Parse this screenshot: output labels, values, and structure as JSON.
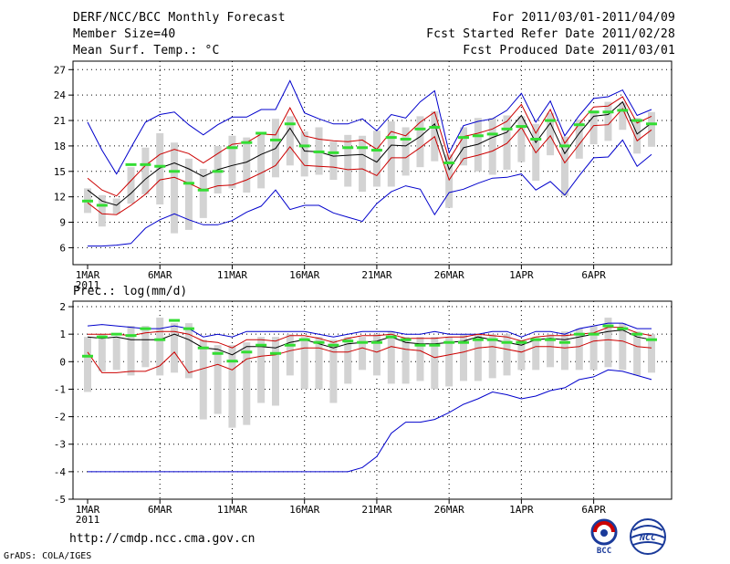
{
  "header": {
    "title": "DERF/NCC/BCC Monthly Forecast",
    "members": "Member Size=40",
    "variable": "Mean Surf. Temp.: °C",
    "for_range": "For 2011/03/01-2011/04/09",
    "started": "Fcst Started Refer Date 2011/02/28",
    "produced": "Fcst Produced Date 2011/03/01"
  },
  "footer": {
    "url": "http://cmdp.ncc.cma.gov.cn",
    "grads": "GrADS: COLA/IGES",
    "logo_bcc": "BCC",
    "logo_ncc": "NCC"
  },
  "colors": {
    "envelope": "#0000cc",
    "spread": "#cc0000",
    "mean": "#000000",
    "box": "#d3d3d3",
    "obs": "#33dd33"
  },
  "chart_data": [
    {
      "type": "line",
      "title": "Mean Surf. Temp.: °C",
      "x_ticks": [
        "1MAR",
        "6MAR",
        "11MAR",
        "16MAR",
        "21MAR",
        "26MAR",
        "1APR",
        "6APR"
      ],
      "year_label": "2011",
      "y_ticks": [
        6,
        9,
        12,
        15,
        18,
        21,
        24,
        27
      ],
      "ylim": [
        4,
        28
      ],
      "days": 40,
      "series": [
        {
          "name": "max",
          "values": [
            20.8,
            17.5,
            14.7,
            17.8,
            20.8,
            21.7,
            22,
            20.5,
            19.3,
            20.5,
            21.4,
            21.4,
            22.3,
            22.3,
            25.7,
            21.9,
            21.2,
            20.6,
            20.6,
            21.2,
            19.8,
            21.7,
            21.3,
            23.2,
            24.5,
            17.2,
            20.4,
            20.9,
            21.2,
            22.2,
            24.2,
            20.8,
            23.3,
            19.2,
            21.6,
            23.6,
            23.8,
            24.6,
            21.6,
            22.3
          ]
        },
        {
          "name": "upper",
          "values": [
            14.2,
            12.8,
            12.1,
            13.9,
            15.7,
            17,
            17.6,
            17.1,
            16,
            17.1,
            18.2,
            18.4,
            19.4,
            19.3,
            22.5,
            19.2,
            18.8,
            18.6,
            18.5,
            18.7,
            17.6,
            19.7,
            19.2,
            20.8,
            22,
            16.4,
            19.1,
            19.5,
            20,
            20.9,
            22.9,
            19.5,
            22.3,
            18.3,
            20.6,
            22.6,
            22.7,
            23.8,
            20.7,
            21.5
          ]
        },
        {
          "name": "mean",
          "values": [
            12.8,
            11.5,
            11,
            12.4,
            14.1,
            15.4,
            16,
            15.3,
            14.4,
            15.2,
            15.7,
            16.1,
            17,
            17.7,
            20.1,
            17.4,
            17.3,
            16.8,
            16.9,
            17,
            16.1,
            18.1,
            18,
            19.1,
            20.6,
            15.2,
            17.8,
            18.2,
            19,
            19.6,
            21.6,
            18.4,
            20.7,
            17.1,
            19.5,
            21.5,
            21.7,
            23.2,
            19.4,
            20.7
          ]
        },
        {
          "name": "lower",
          "values": [
            11.3,
            10,
            9.9,
            11,
            12.3,
            14,
            14.3,
            13.6,
            12.8,
            13.3,
            13.4,
            14,
            14.8,
            15.7,
            17.9,
            15.7,
            15.6,
            15.5,
            15.2,
            15.3,
            14.5,
            16.6,
            16.6,
            17.8,
            19.1,
            14,
            16.5,
            16.9,
            17.4,
            18.3,
            20.2,
            17.2,
            19.2,
            16,
            18.2,
            20.4,
            20.5,
            22.4,
            18.6,
            19.9
          ]
        },
        {
          "name": "min",
          "values": [
            6.2,
            6.2,
            6.3,
            6.5,
            8.3,
            9.3,
            10,
            9.3,
            8.7,
            8.7,
            9.2,
            10.2,
            10.9,
            12.8,
            10.5,
            11,
            11,
            10.1,
            9.6,
            9.1,
            11.2,
            12.6,
            13.3,
            12.9,
            9.9,
            12.5,
            12.9,
            13.6,
            14.2,
            14.3,
            14.7,
            12.8,
            13.8,
            12.2,
            14.5,
            16.6,
            16.7,
            18.7,
            15.6,
            17
          ]
        },
        {
          "name": "obs",
          "values": [
            11.5,
            11,
            null,
            15.8,
            15.8,
            15.6,
            15,
            13.6,
            12.8,
            15,
            17.8,
            18.4,
            19.5,
            18.7,
            20.6,
            18,
            17.3,
            17.2,
            17.8,
            17.8,
            17.5,
            19,
            18.8,
            20,
            20.2,
            16,
            19,
            19.2,
            19.4,
            20,
            20.3,
            18.8,
            21,
            18,
            20.5,
            22,
            22,
            22.2,
            21,
            20.6
          ]
        },
        {
          "name": "box_high",
          "values": [
            13,
            12.2,
            11.8,
            15.5,
            17.8,
            19.5,
            18.4,
            16.5,
            15.3,
            18,
            19.2,
            19,
            19.5,
            21.2,
            21.5,
            19.7,
            20.2,
            18.5,
            19.3,
            19.2,
            19.8,
            20.9,
            20.2,
            21.5,
            22.1,
            17,
            20.2,
            21.3,
            21.3,
            21.6,
            21.5,
            20.6,
            21.9,
            19.1,
            21.1,
            22.2,
            23.2,
            23.1,
            21.3,
            22
          ]
        },
        {
          "name": "box_low",
          "values": [
            10.1,
            8.5,
            10,
            11.2,
            12.3,
            11.1,
            7.7,
            8.1,
            9.5,
            12.4,
            13,
            12.5,
            13,
            14.3,
            15.7,
            14.4,
            14.6,
            14,
            13.2,
            12.6,
            13.2,
            13.2,
            14.5,
            15.5,
            16.2,
            10.7,
            15.7,
            15,
            14.6,
            15.2,
            16.1,
            13.9,
            16.9,
            12.1,
            16.5,
            18.2,
            18.6,
            19.9,
            17.1,
            17.9
          ]
        }
      ]
    },
    {
      "type": "line",
      "title": "Prec.: log(mm/d)",
      "x_ticks": [
        "1MAR",
        "6MAR",
        "11MAR",
        "16MAR",
        "21MAR",
        "26MAR",
        "1APR",
        "6APR"
      ],
      "year_label": "2011",
      "y_ticks": [
        -5,
        -4,
        -3,
        -2,
        -1,
        0,
        1,
        2
      ],
      "ylim": [
        -5,
        2.2
      ],
      "days": 40,
      "series": [
        {
          "name": "max",
          "values": [
            1.3,
            1.35,
            1.3,
            1.25,
            1.2,
            1.2,
            1.3,
            1.2,
            0.9,
            1,
            0.9,
            1.1,
            1.1,
            1.1,
            1.1,
            1.1,
            1,
            0.9,
            1,
            1.1,
            1.1,
            1.1,
            1,
            1,
            1.1,
            1,
            1,
            1,
            1.1,
            1.1,
            0.9,
            1.1,
            1.1,
            1,
            1.2,
            1.3,
            1.4,
            1.4,
            1.2,
            1.2
          ]
        },
        {
          "name": "upper",
          "values": [
            1,
            1,
            1,
            0.95,
            1.05,
            1.1,
            1.1,
            1,
            0.75,
            0.7,
            0.5,
            0.8,
            0.8,
            0.75,
            0.95,
            0.95,
            0.85,
            0.7,
            0.85,
            0.95,
            0.95,
            1,
            0.85,
            0.85,
            0.85,
            0.9,
            0.9,
            1,
            0.95,
            0.9,
            0.75,
            0.9,
            0.95,
            0.95,
            1,
            1.05,
            1.25,
            1.25,
            1.05,
            0.95
          ]
        },
        {
          "name": "mean",
          "values": [
            0.9,
            0.85,
            0.9,
            0.8,
            0.8,
            0.8,
            1,
            0.8,
            0.5,
            0.45,
            0.25,
            0.55,
            0.55,
            0.5,
            0.7,
            0.8,
            0.65,
            0.5,
            0.65,
            0.7,
            0.75,
            0.9,
            0.7,
            0.65,
            0.65,
            0.7,
            0.75,
            0.9,
            0.8,
            0.7,
            0.6,
            0.8,
            0.85,
            0.8,
            0.9,
            1,
            1.1,
            1.15,
            0.9,
            0.8
          ]
        },
        {
          "name": "lower",
          "values": [
            0.35,
            -0.4,
            -0.4,
            -0.35,
            -0.35,
            -0.15,
            0.35,
            -0.4,
            -0.25,
            -0.1,
            -0.3,
            0.1,
            0.2,
            0.25,
            0.4,
            0.5,
            0.5,
            0.35,
            0.35,
            0.5,
            0.35,
            0.55,
            0.45,
            0.4,
            0.15,
            0.25,
            0.35,
            0.5,
            0.55,
            0.45,
            0.35,
            0.55,
            0.55,
            0.5,
            0.55,
            0.75,
            0.8,
            0.75,
            0.55,
            0.5
          ]
        },
        {
          "name": "min",
          "values": [
            -4,
            -4,
            -4,
            -4,
            -4,
            -4,
            -4,
            -4,
            -4,
            -4,
            -4,
            -4,
            -4,
            -4,
            -4,
            -4,
            -4,
            -4,
            -4,
            -3.85,
            -3.45,
            -2.6,
            -2.2,
            -2.2,
            -2.1,
            -1.85,
            -1.55,
            -1.35,
            -1.1,
            -1.2,
            -1.35,
            -1.25,
            -1.05,
            -0.95,
            -0.65,
            -0.55,
            -0.3,
            -0.35,
            -0.5,
            -0.65
          ]
        },
        {
          "name": "obs",
          "values": [
            0.2,
            0.9,
            1,
            0.95,
            1.2,
            0.8,
            1.5,
            1.2,
            0.5,
            0.3,
            0.02,
            0.35,
            0.6,
            0.3,
            0.6,
            0.8,
            0.7,
            0.6,
            0.75,
            0.7,
            0.7,
            0.9,
            0.8,
            0.6,
            0.6,
            0.7,
            0.7,
            0.8,
            0.8,
            0.7,
            0.7,
            0.8,
            0.8,
            0.7,
            1,
            1,
            1.3,
            1.2,
            1,
            0.8
          ]
        },
        {
          "name": "box_high",
          "values": [
            0.9,
            1,
            0.9,
            1.3,
            1.3,
            1.6,
            1.4,
            1.4,
            0.8,
            0.6,
            0.6,
            0.7,
            0.9,
            0.9,
            1,
            0.9,
            0.9,
            0.8,
            0.9,
            0.9,
            1,
            1.1,
            0.9,
            0.9,
            0.9,
            0.9,
            1,
            1,
            1,
            1,
            0.8,
            0.9,
            1,
            1.1,
            1.2,
            1.3,
            1.6,
            1.4,
            1.1,
            1
          ]
        },
        {
          "name": "box_low",
          "values": [
            -1.1,
            -0.35,
            -0.3,
            -0.5,
            -0.2,
            -0.5,
            -0.4,
            -0.6,
            -2.1,
            -1.9,
            -2.4,
            -2.3,
            -1.5,
            -1.6,
            -0.5,
            -1,
            -1,
            -1.5,
            -0.8,
            -0.3,
            -0.5,
            -0.8,
            -0.8,
            -0.7,
            -1,
            -0.9,
            -0.7,
            -0.7,
            -0.6,
            -0.5,
            -0.3,
            -0.3,
            -0.2,
            -0.3,
            -0.3,
            -0.3,
            -0.2,
            -0.3,
            -0.5,
            -0.4
          ]
        }
      ]
    }
  ]
}
